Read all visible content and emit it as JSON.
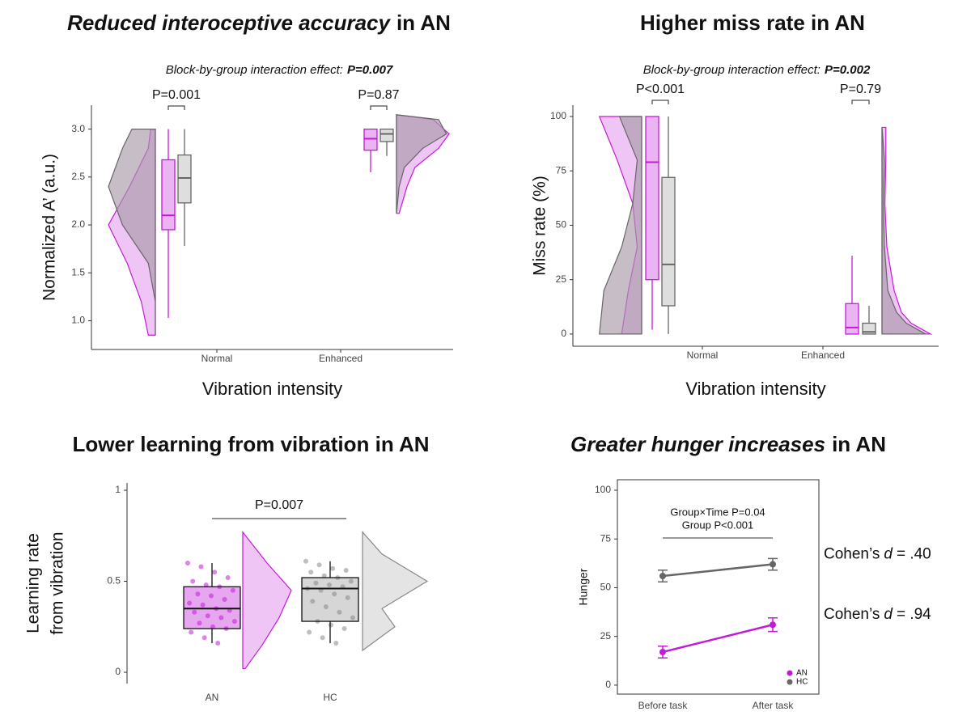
{
  "chart_data": [
    {
      "type": "raincloud",
      "title": [
        "Reduced interoceptive accuracy",
        "in AN"
      ],
      "title_italic": [
        true,
        false
      ],
      "subtitle": [
        "Block-by-group interaction effect:",
        "P=0.007"
      ],
      "ylabel": "Normalized A’ (a.u.)",
      "xlabel": "Vibration intensity",
      "categories": [
        "Normal",
        "Enhanced"
      ],
      "ylim": [
        0.7,
        3.25
      ],
      "yticks": [
        {
          "value": 1,
          "label": "1.0"
        },
        1.5,
        {
          "value": 2,
          "label": "2.0"
        },
        2.5,
        {
          "value": 3,
          "label": "3.0"
        }
      ],
      "comparisons": [
        "P=0.001",
        "P=0.87"
      ],
      "density_y": [
        [
          0.85,
          1.2,
          1.6,
          2.0,
          2.4,
          2.8,
          3.0
        ],
        [
          2.12,
          2.4,
          2.6,
          2.8,
          2.95,
          3.1,
          3.15
        ]
      ],
      "series": [
        {
          "color": "#c41ad8",
          "fill": "#e6a6f0",
          "boxes": [
            [
              1.03,
              1.95,
              2.1,
              2.68,
              3.0
            ],
            [
              2.55,
              2.78,
              2.9,
              3.0,
              3.0
            ]
          ],
          "density": [
            [
              0.15,
              0.3,
              0.6,
              1.0,
              0.55,
              0.15,
              0.1
            ],
            [
              0.05,
              0.2,
              0.35,
              0.8,
              1.0,
              0.7,
              0.0
            ]
          ]
        },
        {
          "color": "#666666",
          "fill": "#a89aa8",
          "boxes": [
            [
              1.78,
              2.23,
              2.49,
              2.73,
              3.0
            ],
            [
              2.72,
              2.87,
              2.95,
              3.0,
              3.0
            ]
          ],
          "density": [
            [
              0.0,
              0.0,
              0.15,
              0.7,
              1.0,
              0.7,
              0.5
            ],
            [
              0.0,
              0.05,
              0.15,
              0.5,
              0.95,
              0.8,
              0.0
            ]
          ]
        }
      ]
    },
    {
      "type": "raincloud",
      "title": [
        "Higher miss rate in AN"
      ],
      "title_italic": [
        false
      ],
      "subtitle": [
        "Block-by-group interaction effect:",
        "P=0.002"
      ],
      "ylabel": "Miss rate (%)",
      "xlabel": "Vibration intensity",
      "categories": [
        "Normal",
        "Enhanced"
      ],
      "ylim": [
        -5.6,
        105.2
      ],
      "yticks": [
        0,
        25,
        50,
        75,
        100
      ],
      "comparisons": [
        "P<0.001",
        "P=0.79"
      ],
      "density_y": [
        [
          0,
          20,
          40,
          60,
          80,
          100
        ],
        [
          0,
          5,
          10,
          20,
          40,
          60,
          80,
          95
        ]
      ],
      "series": [
        {
          "color": "#c41ad8",
          "fill": "#e6a6f0",
          "boxes": [
            [
              2,
              25,
              79,
              100,
              100
            ],
            [
              0,
              0,
              3,
              14,
              36
            ]
          ],
          "density": [
            [
              0.45,
              0.3,
              0.1,
              0.2,
              0.55,
              0.95
            ],
            [
              1.0,
              0.6,
              0.4,
              0.25,
              0.1,
              0.06,
              0.08,
              0.08
            ]
          ]
        },
        {
          "color": "#666666",
          "fill": "#a89aa8",
          "boxes": [
            [
              0,
              13,
              32,
              72,
              100
            ],
            [
              0,
              0,
              1,
              5,
              13
            ]
          ],
          "density": [
            [
              0.95,
              0.85,
              0.45,
              0.2,
              0.1,
              0.5
            ],
            [
              0.9,
              0.5,
              0.3,
              0.12,
              0.05,
              0.03,
              0.05,
              0.0
            ]
          ]
        }
      ]
    },
    {
      "type": "raincloud_points",
      "title": [
        "Lower learning from vibration in AN"
      ],
      "title_italic": [
        false
      ],
      "ylabel": [
        "Learning rate",
        "from vibration"
      ],
      "categories": [
        "AN",
        "HC"
      ],
      "ylim": [
        -0.062,
        1.04
      ],
      "yticks": [
        0,
        0.5,
        1
      ],
      "comparison": "P=0.007",
      "density_y": [
        [
          0.02,
          0.15,
          0.3,
          0.45,
          0.6,
          0.77
        ],
        [
          0.12,
          0.25,
          0.35,
          0.5,
          0.65,
          0.77
        ]
      ],
      "groups": [
        {
          "color": "#c41ad8",
          "fill": "#e6a6f0",
          "box": [
            0.16,
            0.24,
            0.35,
            0.47,
            0.6
          ],
          "density": [
            0.05,
            0.4,
            0.75,
            1.0,
            0.5,
            0.0
          ],
          "points": [
            0.6,
            0.58,
            0.55,
            0.52,
            0.5,
            0.48,
            0.47,
            0.45,
            0.43,
            0.42,
            0.4,
            0.38,
            0.37,
            0.35,
            0.34,
            0.33,
            0.31,
            0.3,
            0.28,
            0.27,
            0.25,
            0.24,
            0.22,
            0.19,
            0.16
          ]
        },
        {
          "color": "#888888",
          "fill": "#d6d6d6",
          "box": [
            0.16,
            0.28,
            0.46,
            0.52,
            0.61
          ],
          "density": [
            0.0,
            0.5,
            0.3,
            1.0,
            0.3,
            0.0
          ],
          "points": [
            0.61,
            0.59,
            0.57,
            0.56,
            0.55,
            0.53,
            0.52,
            0.5,
            0.49,
            0.48,
            0.47,
            0.46,
            0.45,
            0.43,
            0.41,
            0.39,
            0.36,
            0.33,
            0.3,
            0.28,
            0.26,
            0.24,
            0.22,
            0.19,
            0.16
          ]
        }
      ]
    },
    {
      "type": "line",
      "title": [
        "Greater hunger increases",
        "in AN"
      ],
      "title_italic": [
        true,
        false
      ],
      "ylabel": "Hunger",
      "categories": [
        "Before task",
        "After task"
      ],
      "ylim": [
        -4.6,
        105.4
      ],
      "yticks": [
        0,
        25,
        50,
        75,
        100
      ],
      "annotations": [
        "Group×Time P=0.04",
        "Group P<0.001"
      ],
      "legend": "bottom-right",
      "series": [
        {
          "name": "AN",
          "color": "#c41ad8",
          "values": [
            17,
            31
          ],
          "errors": [
            3,
            3.5
          ],
          "effect_size": [
            "Cohen’s",
            "d",
            "= .94"
          ]
        },
        {
          "name": "HC",
          "color": "#666666",
          "values": [
            56,
            62
          ],
          "errors": [
            3,
            3
          ],
          "effect_size": [
            "Cohen’s",
            "d",
            "= .40"
          ]
        }
      ]
    }
  ]
}
